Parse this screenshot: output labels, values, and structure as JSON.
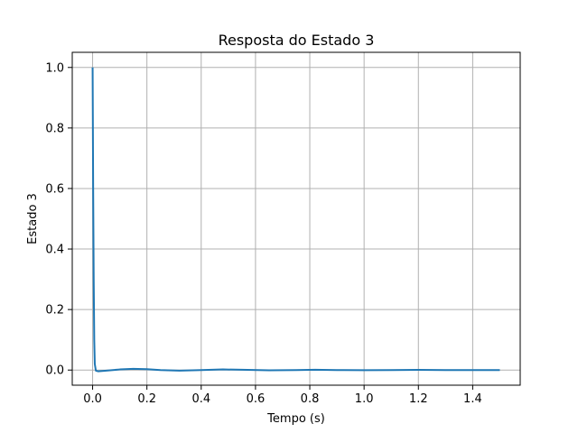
{
  "chart_data": {
    "type": "line",
    "title": "Resposta do Estado 3",
    "xlabel": "Tempo (s)",
    "ylabel": "Estado 3",
    "xlim": [
      -0.075,
      1.575
    ],
    "ylim": [
      -0.05,
      1.05
    ],
    "xticks": [
      0.0,
      0.2,
      0.4,
      0.6,
      0.8,
      1.0,
      1.2,
      1.4
    ],
    "xtick_labels": [
      "0.0",
      "0.2",
      "0.4",
      "0.6",
      "0.8",
      "1.0",
      "1.2",
      "1.4"
    ],
    "yticks": [
      0.0,
      0.2,
      0.4,
      0.6,
      0.8,
      1.0
    ],
    "ytick_labels": [
      "0.0",
      "0.2",
      "0.4",
      "0.6",
      "0.8",
      "1.0"
    ],
    "grid": true,
    "legend": "none",
    "series": [
      {
        "color": "#1f77b4",
        "x": [
          0.0,
          0.002,
          0.004,
          0.006,
          0.008,
          0.012,
          0.02,
          0.05,
          0.1,
          0.15,
          0.2,
          0.25,
          0.32,
          0.4,
          0.48,
          0.55,
          0.65,
          0.75,
          0.82,
          0.9,
          1.0,
          1.1,
          1.2,
          1.3,
          1.4,
          1.5
        ],
        "y": [
          1.0,
          0.6,
          0.3,
          0.1,
          0.02,
          -0.002,
          -0.004,
          -0.002,
          0.002,
          0.004,
          0.003,
          0.0,
          -0.002,
          0.0,
          0.002,
          0.001,
          -0.001,
          0.0,
          0.001,
          0.0,
          -0.0005,
          0.0,
          0.0005,
          0.0,
          0.0,
          0.0
        ]
      }
    ]
  }
}
